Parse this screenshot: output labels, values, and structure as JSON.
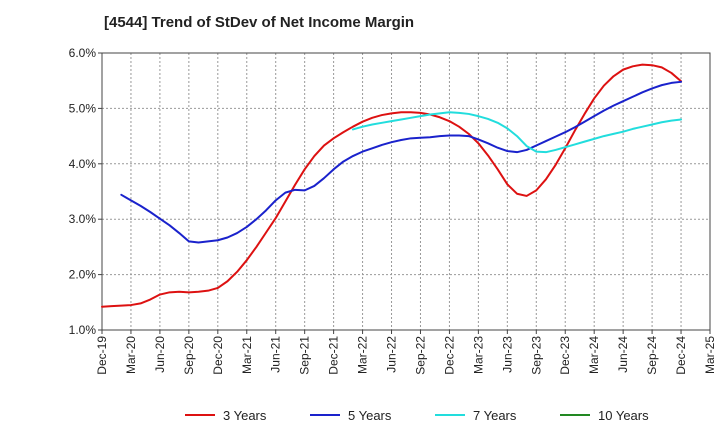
{
  "chart_data": {
    "type": "line",
    "title": "[4544]  Trend of StDev of Net Income Margin",
    "xlabel": "",
    "ylabel": "",
    "x_ticks": [
      "Dec-19",
      "Mar-20",
      "Jun-20",
      "Sep-20",
      "Dec-20",
      "Mar-21",
      "Jun-21",
      "Sep-21",
      "Dec-21",
      "Mar-22",
      "Jun-22",
      "Sep-22",
      "Dec-22",
      "Mar-23",
      "Jun-23",
      "Sep-23",
      "Dec-23",
      "Mar-24",
      "Jun-24",
      "Sep-24",
      "Dec-24",
      "Mar-25"
    ],
    "y_ticks": [
      "1.0%",
      "2.0%",
      "3.0%",
      "4.0%",
      "5.0%",
      "6.0%"
    ],
    "ylim": [
      1.0,
      6.0
    ],
    "grid": true,
    "legend_position": "bottom",
    "series": [
      {
        "name": "3 Years",
        "color": "#dd1111",
        "points": [
          [
            "Dec-19",
            1.42
          ],
          [
            "Jan-20",
            1.43
          ],
          [
            "Feb-20",
            1.44
          ],
          [
            "Mar-20",
            1.45
          ],
          [
            "Apr-20",
            1.48
          ],
          [
            "May-20",
            1.55
          ],
          [
            "Jun-20",
            1.64
          ],
          [
            "Jul-20",
            1.68
          ],
          [
            "Aug-20",
            1.69
          ],
          [
            "Sep-20",
            1.68
          ],
          [
            "Oct-20",
            1.69
          ],
          [
            "Nov-20",
            1.71
          ],
          [
            "Dec-20",
            1.76
          ],
          [
            "Jan-21",
            1.88
          ],
          [
            "Feb-21",
            2.05
          ],
          [
            "Mar-21",
            2.26
          ],
          [
            "Apr-21",
            2.5
          ],
          [
            "May-21",
            2.76
          ],
          [
            "Jun-21",
            3.02
          ],
          [
            "Jul-21",
            3.32
          ],
          [
            "Aug-21",
            3.62
          ],
          [
            "Sep-21",
            3.9
          ],
          [
            "Oct-21",
            4.14
          ],
          [
            "Nov-21",
            4.33
          ],
          [
            "Dec-21",
            4.46
          ],
          [
            "Jan-22",
            4.57
          ],
          [
            "Feb-22",
            4.67
          ],
          [
            "Mar-22",
            4.76
          ],
          [
            "Apr-22",
            4.83
          ],
          [
            "May-22",
            4.88
          ],
          [
            "Jun-22",
            4.91
          ],
          [
            "Jul-22",
            4.93
          ],
          [
            "Aug-22",
            4.93
          ],
          [
            "Sep-22",
            4.92
          ],
          [
            "Oct-22",
            4.89
          ],
          [
            "Nov-22",
            4.84
          ],
          [
            "Dec-22",
            4.77
          ],
          [
            "Jan-23",
            4.67
          ],
          [
            "Feb-23",
            4.54
          ],
          [
            "Mar-23",
            4.37
          ],
          [
            "Apr-23",
            4.15
          ],
          [
            "May-23",
            3.9
          ],
          [
            "Jun-23",
            3.63
          ],
          [
            "Jul-23",
            3.46
          ],
          [
            "Aug-23",
            3.42
          ],
          [
            "Sep-23",
            3.52
          ],
          [
            "Oct-23",
            3.72
          ],
          [
            "Nov-23",
            3.98
          ],
          [
            "Dec-23",
            4.28
          ],
          [
            "Jan-24",
            4.6
          ],
          [
            "Feb-24",
            4.9
          ],
          [
            "Mar-24",
            5.18
          ],
          [
            "Apr-24",
            5.41
          ],
          [
            "May-24",
            5.58
          ],
          [
            "Jun-24",
            5.7
          ],
          [
            "Jul-24",
            5.76
          ],
          [
            "Aug-24",
            5.79
          ],
          [
            "Sep-24",
            5.78
          ],
          [
            "Oct-24",
            5.74
          ],
          [
            "Nov-24",
            5.64
          ],
          [
            "Dec-24",
            5.49
          ]
        ]
      },
      {
        "name": "5 Years",
        "color": "#1a22cc",
        "points": [
          [
            "Feb-20",
            3.44
          ],
          [
            "Mar-20",
            3.34
          ],
          [
            "Apr-20",
            3.24
          ],
          [
            "May-20",
            3.13
          ],
          [
            "Jun-20",
            3.01
          ],
          [
            "Jul-20",
            2.89
          ],
          [
            "Aug-20",
            2.75
          ],
          [
            "Sep-20",
            2.6
          ],
          [
            "Oct-20",
            2.58
          ],
          [
            "Nov-20",
            2.6
          ],
          [
            "Dec-20",
            2.62
          ],
          [
            "Jan-21",
            2.67
          ],
          [
            "Feb-21",
            2.75
          ],
          [
            "Mar-21",
            2.86
          ],
          [
            "Apr-21",
            3.0
          ],
          [
            "May-21",
            3.16
          ],
          [
            "Jun-21",
            3.34
          ],
          [
            "Jul-21",
            3.48
          ],
          [
            "Aug-21",
            3.53
          ],
          [
            "Sep-21",
            3.52
          ],
          [
            "Oct-21",
            3.6
          ],
          [
            "Nov-21",
            3.74
          ],
          [
            "Dec-21",
            3.9
          ],
          [
            "Jan-22",
            4.04
          ],
          [
            "Feb-22",
            4.14
          ],
          [
            "Mar-22",
            4.22
          ],
          [
            "Apr-22",
            4.28
          ],
          [
            "May-22",
            4.34
          ],
          [
            "Jun-22",
            4.39
          ],
          [
            "Jul-22",
            4.43
          ],
          [
            "Aug-22",
            4.46
          ],
          [
            "Sep-22",
            4.47
          ],
          [
            "Oct-22",
            4.48
          ],
          [
            "Nov-22",
            4.5
          ],
          [
            "Dec-22",
            4.51
          ],
          [
            "Jan-23",
            4.51
          ],
          [
            "Feb-23",
            4.5
          ],
          [
            "Mar-23",
            4.44
          ],
          [
            "Apr-23",
            4.37
          ],
          [
            "May-23",
            4.29
          ],
          [
            "Jun-23",
            4.23
          ],
          [
            "Jul-23",
            4.21
          ],
          [
            "Aug-23",
            4.25
          ],
          [
            "Sep-23",
            4.33
          ],
          [
            "Oct-23",
            4.41
          ],
          [
            "Nov-23",
            4.49
          ],
          [
            "Dec-23",
            4.57
          ],
          [
            "Jan-24",
            4.66
          ],
          [
            "Feb-24",
            4.76
          ],
          [
            "Mar-24",
            4.86
          ],
          [
            "Apr-24",
            4.96
          ],
          [
            "May-24",
            5.05
          ],
          [
            "Jun-24",
            5.13
          ],
          [
            "Jul-24",
            5.21
          ],
          [
            "Aug-24",
            5.29
          ],
          [
            "Sep-24",
            5.36
          ],
          [
            "Oct-24",
            5.42
          ],
          [
            "Nov-24",
            5.46
          ],
          [
            "Dec-24",
            5.48
          ]
        ]
      },
      {
        "name": "7 Years",
        "color": "#22dddd",
        "points": [
          [
            "Feb-22",
            4.62
          ],
          [
            "Mar-22",
            4.67
          ],
          [
            "Apr-22",
            4.71
          ],
          [
            "May-22",
            4.74
          ],
          [
            "Jun-22",
            4.77
          ],
          [
            "Jul-22",
            4.8
          ],
          [
            "Aug-22",
            4.83
          ],
          [
            "Sep-22",
            4.86
          ],
          [
            "Oct-22",
            4.89
          ],
          [
            "Nov-22",
            4.91
          ],
          [
            "Dec-22",
            4.93
          ],
          [
            "Jan-23",
            4.92
          ],
          [
            "Feb-23",
            4.9
          ],
          [
            "Mar-23",
            4.86
          ],
          [
            "Apr-23",
            4.81
          ],
          [
            "May-23",
            4.74
          ],
          [
            "Jun-23",
            4.64
          ],
          [
            "Jul-23",
            4.5
          ],
          [
            "Aug-23",
            4.32
          ],
          [
            "Sep-23",
            4.22
          ],
          [
            "Oct-23",
            4.21
          ],
          [
            "Nov-23",
            4.25
          ],
          [
            "Dec-23",
            4.3
          ],
          [
            "Jan-24",
            4.35
          ],
          [
            "Feb-24",
            4.4
          ],
          [
            "Mar-24",
            4.45
          ],
          [
            "Apr-24",
            4.5
          ],
          [
            "May-24",
            4.54
          ],
          [
            "Jun-24",
            4.58
          ],
          [
            "Jul-24",
            4.63
          ],
          [
            "Aug-24",
            4.67
          ],
          [
            "Sep-24",
            4.71
          ],
          [
            "Oct-24",
            4.75
          ],
          [
            "Nov-24",
            4.78
          ],
          [
            "Dec-24",
            4.8
          ]
        ]
      },
      {
        "name": "10 Years",
        "color": "#228822",
        "points": []
      }
    ]
  }
}
